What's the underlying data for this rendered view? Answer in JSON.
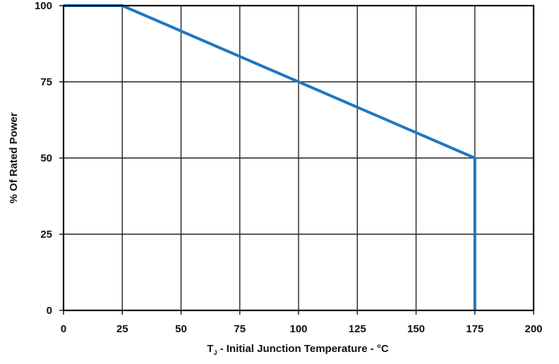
{
  "chart_data": {
    "type": "line",
    "xlabel_parts": {
      "main": "T",
      "subscript": "J",
      "rest": " - Initial Junction Temperature - °C"
    },
    "ylabel": "% Of Rated Power",
    "xlim": [
      0,
      200
    ],
    "ylim": [
      0,
      100
    ],
    "x_ticks": [
      0,
      25,
      50,
      75,
      100,
      125,
      150,
      175,
      200
    ],
    "x_tick_labels": [
      "0",
      "25",
      "50",
      "75",
      "100",
      "125",
      "150",
      "175",
      "200"
    ],
    "y_ticks": [
      0,
      25,
      50,
      75,
      100
    ],
    "y_tick_labels": [
      "0",
      "25",
      "50",
      "75",
      "100"
    ],
    "grid": true,
    "series": [
      {
        "x": [
          0,
          25,
          175,
          175
        ],
        "y": [
          100,
          100,
          50,
          0
        ],
        "color": "#1f77c0"
      }
    ]
  }
}
